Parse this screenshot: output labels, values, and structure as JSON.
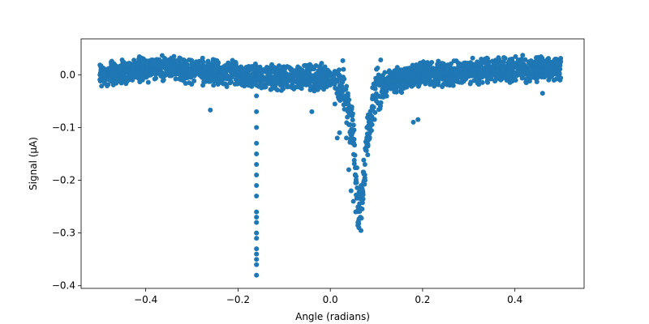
{
  "chart_data": {
    "type": "scatter",
    "xlabel": "Angle (radians)",
    "ylabel": "Signal (μA)",
    "xlim": [
      -0.54,
      0.55
    ],
    "ylim": [
      -0.405,
      0.068
    ],
    "xticks": [
      -0.4,
      -0.2,
      0.0,
      0.2,
      0.4
    ],
    "xtick_labels": [
      "−0.4",
      "−0.2",
      "0.0",
      "0.2",
      "0.4"
    ],
    "yticks": [
      0.0,
      -0.1,
      -0.2,
      -0.3,
      -0.4
    ],
    "ytick_labels": [
      "0.0",
      "−0.1",
      "−0.2",
      "−0.3",
      "−0.4"
    ],
    "grid": false,
    "marker_color": "#1f77b4",
    "series": [
      {
        "x_range": [
          -0.5,
          0.5
        ],
        "points": [
          [
            -0.16,
            -0.02
          ],
          [
            -0.16,
            -0.04
          ],
          [
            -0.16,
            -0.07
          ],
          [
            -0.16,
            -0.1
          ],
          [
            -0.16,
            -0.13
          ],
          [
            -0.16,
            -0.15
          ],
          [
            -0.16,
            -0.17
          ],
          [
            -0.16,
            -0.19
          ],
          [
            -0.16,
            -0.21
          ],
          [
            -0.16,
            -0.23
          ],
          [
            -0.16,
            -0.26
          ],
          [
            -0.16,
            -0.27
          ],
          [
            -0.16,
            -0.28
          ],
          [
            -0.16,
            -0.3
          ],
          [
            -0.16,
            -0.31
          ],
          [
            -0.16,
            -0.33
          ],
          [
            -0.16,
            -0.34
          ],
          [
            -0.16,
            -0.35
          ],
          [
            -0.16,
            -0.36
          ],
          [
            -0.16,
            -0.38
          ],
          [
            -0.26,
            -0.067
          ],
          [
            0.035,
            -0.12
          ],
          [
            0.04,
            -0.18
          ],
          [
            0.045,
            -0.22
          ],
          [
            0.05,
            -0.24
          ],
          [
            0.055,
            -0.26
          ],
          [
            0.06,
            -0.28
          ],
          [
            0.062,
            -0.29
          ],
          [
            0.065,
            -0.27
          ],
          [
            0.07,
            -0.22
          ],
          [
            0.075,
            -0.17
          ],
          [
            0.08,
            -0.13
          ],
          [
            0.09,
            -0.08
          ],
          [
            0.1,
            -0.05
          ],
          [
            0.18,
            -0.09
          ],
          [
            0.19,
            -0.085
          ],
          [
            0.02,
            -0.11
          ],
          [
            0.015,
            -0.12
          ],
          [
            -0.04,
            -0.07
          ],
          [
            0.46,
            -0.035
          ]
        ],
        "envelope": [
          [
            -0.5,
            0.0
          ],
          [
            -0.4,
            0.012
          ],
          [
            -0.3,
            0.008
          ],
          [
            -0.2,
            0.0
          ],
          [
            -0.1,
            -0.005
          ],
          [
            0.0,
            -0.005
          ],
          [
            0.03,
            -0.02
          ],
          [
            0.05,
            -0.12
          ],
          [
            0.06,
            -0.25
          ],
          [
            0.065,
            -0.27
          ],
          [
            0.08,
            -0.12
          ],
          [
            0.1,
            -0.02
          ],
          [
            0.2,
            0.0
          ],
          [
            0.3,
            0.005
          ],
          [
            0.4,
            0.012
          ],
          [
            0.5,
            0.01
          ]
        ]
      }
    ]
  }
}
